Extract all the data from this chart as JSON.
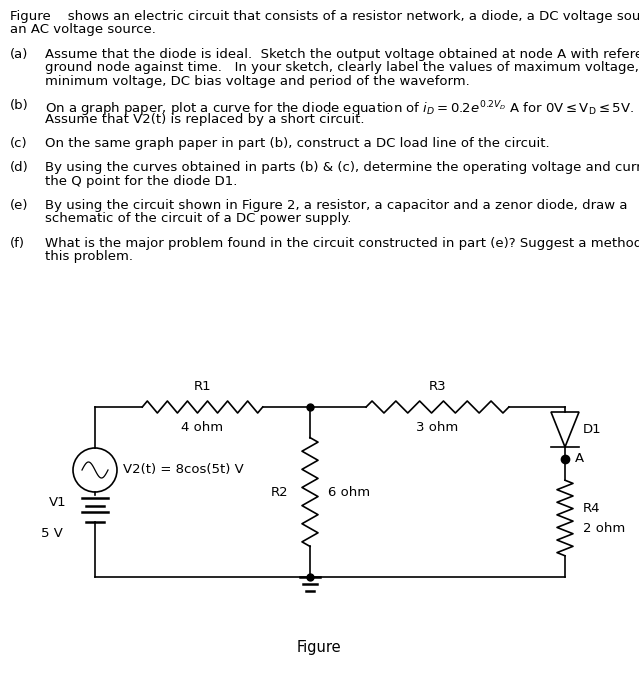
{
  "bg_color": "#ffffff",
  "text_color": "#000000",
  "font_size": 9.5,
  "title_line1": "Figure    shows an electric circuit that consists of a resistor network, a diode, a DC voltage source and",
  "title_line2": "an AC voltage source.",
  "part_a_label": "(a)",
  "part_a_line1": "Assume that the diode is ideal.  Sketch the output voltage obtained at node A with reference to",
  "part_a_line2": "ground node against time.   In your sketch, clearly label the values of maximum voltage,",
  "part_a_line3": "minimum voltage, DC bias voltage and period of the waveform.",
  "part_b_label": "(b)",
  "part_b_line1a": "On a graph paper, plot a curve for the diode equation of ",
  "part_b_math": "$i_D = 0.2e^{0.2V_D}$",
  "part_b_line1b": " A for $0\\mathrm{V} \\leq \\mathrm{V_D} \\leq 5\\mathrm{V}$.",
  "part_b_line2": "Assume that V2(t) is replaced by a short circuit.",
  "part_c_label": "(c)",
  "part_c_text": "On the same graph paper in part (b), construct a DC load line of the circuit.",
  "part_d_label": "(d)",
  "part_d_line1": "By using the curves obtained in parts (b) & (c), determine the operating voltage and current at",
  "part_d_line2": "the Q point for the diode D1.",
  "part_e_label": "(e)",
  "part_e_line1": "By using the circuit shown in Figure 2, a resistor, a capacitor and a zenor diode, draw a",
  "part_e_line2": "schematic of the circuit of a DC power supply.",
  "part_f_label": "(f)",
  "part_f_line1": "What is the major problem found in the circuit constructed in part (e)? Suggest a method to solve",
  "part_f_line2": "this problem.",
  "figure_label": "Figure",
  "R1_label": "R1",
  "R1_val": "4 ohm",
  "R2_label": "R2",
  "R2_val": "6 ohm",
  "R3_label": "R3",
  "R3_val": "3 ohm",
  "R4_label": "R4",
  "R4_val": "2 ohm",
  "D1_label": "D1",
  "V1_label": "V1",
  "V1_val": "5 V",
  "V2_label": "V2(t) = 8cos(5t) V",
  "node_A_label": "A",
  "lw": 1.2,
  "line_color": "#000000"
}
